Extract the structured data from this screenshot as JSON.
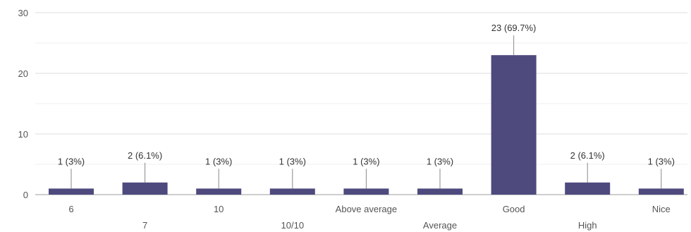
{
  "chart_data": {
    "type": "bar",
    "categories": [
      "6",
      "7",
      "10",
      "10/10",
      "Above average",
      "Average",
      "Good",
      "High",
      "Nice"
    ],
    "values": [
      1,
      2,
      1,
      1,
      1,
      1,
      23,
      2,
      1
    ],
    "data_labels": [
      "1 (3%)",
      "2 (6.1%)",
      "1 (3%)",
      "1 (3%)",
      "1 (3%)",
      "1 (3%)",
      "23 (69.7%)",
      "2 (6.1%)",
      "1 (3%)"
    ],
    "y_ticks": [
      "0",
      "10",
      "20",
      "30"
    ],
    "ylim": [
      0,
      30
    ],
    "grid": true,
    "bar_color": "#4e4a7e"
  }
}
